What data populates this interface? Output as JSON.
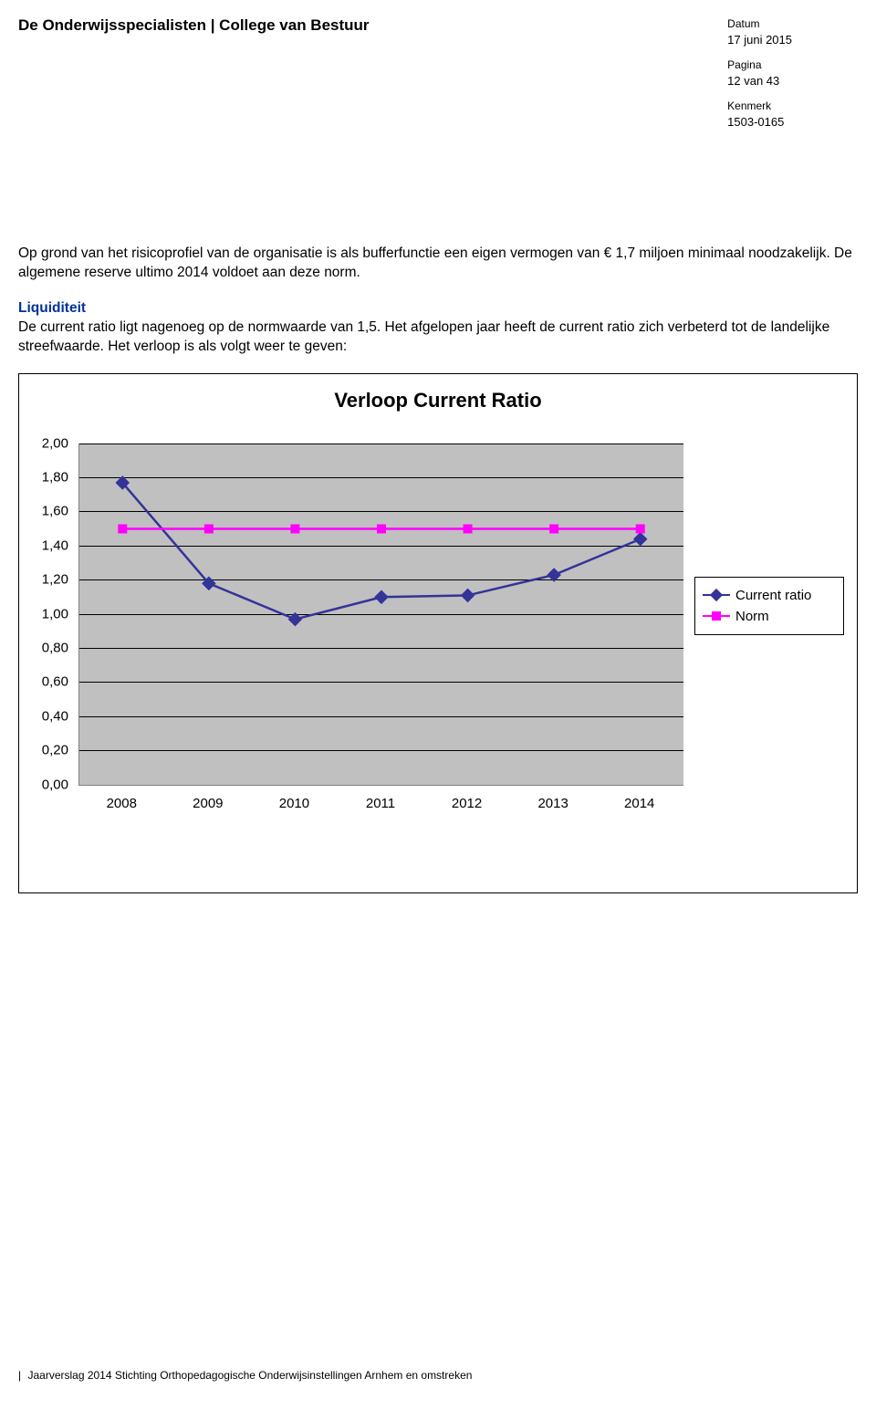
{
  "header": {
    "left": "De Onderwijsspecialisten | College van Bestuur",
    "meta": {
      "date_label": "Datum",
      "date_value": "17 juni 2015",
      "page_label": "Pagina",
      "page_value": "12 van 43",
      "ref_label": "Kenmerk",
      "ref_value": "1503-0165"
    }
  },
  "body": {
    "para1": "Op grond van het risicoprofiel van de organisatie is als bufferfunctie een eigen vermogen van € 1,7 miljoen minimaal noodzakelijk. De algemene reserve ultimo 2014 voldoet aan deze norm.",
    "section_title": "Liquiditeit",
    "para2": "De current ratio ligt nagenoeg op de normwaarde van 1,5. Het afgelopen jaar heeft de current ratio zich verbeterd tot de landelijke streefwaarde. Het verloop is als volgt weer te geven:"
  },
  "chart": {
    "type": "line",
    "title": "Verloop Current Ratio",
    "x_categories": [
      "2008",
      "2009",
      "2010",
      "2011",
      "2012",
      "2013",
      "2014"
    ],
    "series": [
      {
        "name": "Current ratio",
        "label": "Current ratio",
        "values": [
          1.77,
          1.18,
          0.97,
          1.1,
          1.11,
          1.23,
          1.44
        ],
        "color": "#333399",
        "marker": "diamond",
        "marker_size": 11,
        "line_width": 2.5
      },
      {
        "name": "Norm",
        "label": "Norm",
        "values": [
          1.5,
          1.5,
          1.5,
          1.5,
          1.5,
          1.5,
          1.5
        ],
        "color": "#ff00ff",
        "marker": "square",
        "marker_size": 10,
        "line_width": 2.5
      }
    ],
    "y": {
      "min": 0.0,
      "max": 2.0,
      "step": 0.2,
      "labels": [
        "0,00",
        "0,20",
        "0,40",
        "0,60",
        "0,80",
        "1,00",
        "1,20",
        "1,40",
        "1,60",
        "1,80",
        "2,00"
      ]
    },
    "plot_background": "#c0c0c0",
    "grid_color": "#000000",
    "axis_color": "#808080",
    "font_sizes": {
      "title": 22,
      "axis_label": 15,
      "legend": 15
    }
  },
  "footer": {
    "text": "Jaarverslag 2014 Stichting Orthopedagogische Onderwijsinstellingen Arnhem en omstreken",
    "prefix": "|"
  }
}
